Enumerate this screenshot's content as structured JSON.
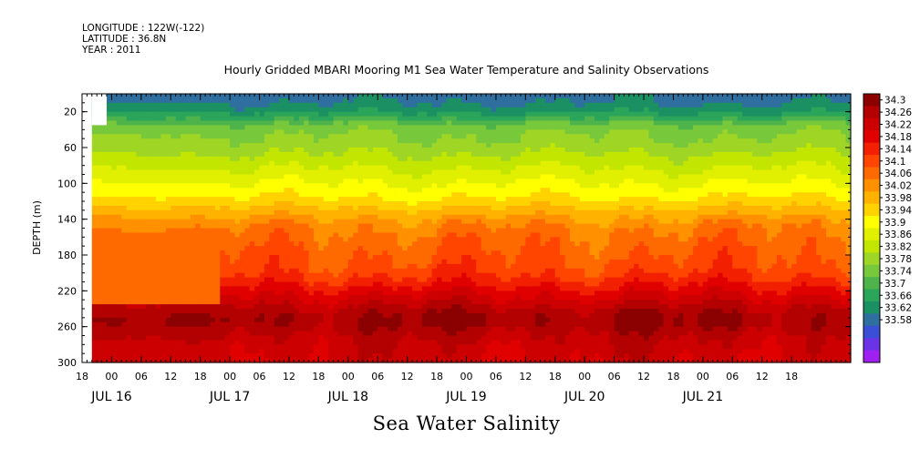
{
  "header": {
    "longitude": "LONGITUDE : 122W(-122)",
    "latitude": "LATITUDE : 36.8N",
    "year": "YEAR : 2011"
  },
  "chart_data": {
    "type": "heatmap",
    "title": "Hourly Gridded MBARI Mooring M1 Sea Water Temperature and Salinity Observations",
    "bottom_title": "Sea Water Salinity",
    "ylabel": "DEPTH (m)",
    "xlabel": "",
    "y_axis": {
      "range": [
        300,
        0
      ],
      "inverted": true,
      "ticks": [
        20,
        60,
        100,
        140,
        180,
        220,
        260,
        300
      ]
    },
    "x_axis": {
      "range_hours": [
        0,
        156
      ],
      "hour_ticks": [
        "18",
        "00",
        "06",
        "12",
        "18",
        "00",
        "06",
        "12",
        "18",
        "00",
        "06",
        "12",
        "18",
        "00",
        "06",
        "12",
        "18",
        "00",
        "06",
        "12",
        "18",
        "00",
        "06",
        "12",
        "18"
      ],
      "day_labels": [
        "JUL 16",
        "JUL 17",
        "JUL 18",
        "JUL 19",
        "JUL 20",
        "JUL 21"
      ]
    },
    "data_start_hour": 2,
    "colorbar": {
      "levels": [
        "34.3",
        "34.26",
        "34.22",
        "34.18",
        "34.14",
        "34.1",
        "34.06",
        "34.02",
        "33.98",
        "33.94",
        "33.9",
        "33.86",
        "33.82",
        "33.78",
        "33.74",
        "33.7",
        "33.66",
        "33.62",
        "33.58"
      ],
      "colors": [
        "#8b0000",
        "#b30000",
        "#cc0000",
        "#e00000",
        "#f22000",
        "#ff4500",
        "#ff6a00",
        "#ff9000",
        "#ffb300",
        "#ffd200",
        "#ffff00",
        "#e0f000",
        "#c2e600",
        "#9fd625",
        "#78c83c",
        "#4db34a",
        "#2aa55a",
        "#1b9063",
        "#2e6fa0",
        "#3a4fd6",
        "#6a33e8",
        "#a020f0"
      ],
      "min": 33.58,
      "max": 34.3
    },
    "salinity_profile": {
      "depths": [
        5,
        15,
        25,
        35,
        45,
        55,
        65,
        75,
        85,
        95,
        105,
        115,
        125,
        135,
        145,
        155,
        165,
        175,
        185,
        195,
        205,
        215,
        225,
        235,
        245,
        255,
        265,
        275,
        285,
        295,
        300
      ],
      "values": [
        33.7,
        33.72,
        33.76,
        33.82,
        33.84,
        33.85,
        33.87,
        33.89,
        33.91,
        33.93,
        33.95,
        33.97,
        34.0,
        34.03,
        34.06,
        34.08,
        34.09,
        34.1,
        34.11,
        34.12,
        34.14,
        34.17,
        34.2,
        34.23,
        34.26,
        34.27,
        34.25,
        34.23,
        34.22,
        34.21,
        34.21
      ]
    }
  }
}
